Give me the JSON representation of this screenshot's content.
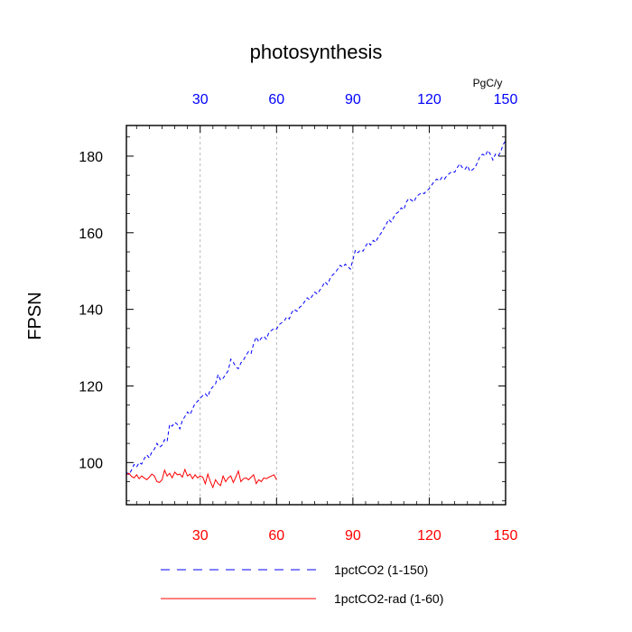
{
  "chart_data": {
    "type": "line",
    "title": "photosynthesis",
    "ylabel": "FPSN",
    "top_axis_unit": "PgC/y",
    "xlim": [
      1,
      150
    ],
    "ylim": [
      89,
      188
    ],
    "x_ticks": [
      30,
      60,
      90,
      120,
      150
    ],
    "y_ticks": [
      100,
      120,
      140,
      160,
      180
    ],
    "bottom_tick_color": "#ff0000",
    "top_tick_color": "#0000ff",
    "grid": "vertical dashed at x ticks",
    "legend_position": "bottom",
    "series": [
      {
        "name": "1pctCO2 (1-150)",
        "color": "#0000ff",
        "dash": "dashed",
        "x": [
          1,
          2,
          3,
          4,
          5,
          6,
          7,
          8,
          9,
          10,
          11,
          12,
          13,
          14,
          15,
          16,
          17,
          18,
          19,
          20,
          21,
          22,
          23,
          24,
          25,
          26,
          27,
          28,
          29,
          30,
          31,
          32,
          33,
          34,
          35,
          36,
          37,
          38,
          39,
          40,
          41,
          42,
          43,
          44,
          45,
          46,
          47,
          48,
          49,
          50,
          51,
          52,
          53,
          54,
          55,
          56,
          57,
          58,
          59,
          60,
          61,
          62,
          63,
          64,
          65,
          66,
          67,
          68,
          69,
          70,
          71,
          72,
          73,
          74,
          75,
          76,
          77,
          78,
          79,
          80,
          81,
          82,
          83,
          84,
          85,
          86,
          87,
          88,
          89,
          90,
          91,
          92,
          93,
          94,
          95,
          96,
          97,
          98,
          99,
          100,
          101,
          102,
          103,
          104,
          105,
          106,
          107,
          108,
          109,
          110,
          111,
          112,
          113,
          114,
          115,
          116,
          117,
          118,
          119,
          120,
          121,
          122,
          123,
          124,
          125,
          126,
          127,
          128,
          129,
          130,
          131,
          132,
          133,
          134,
          135,
          136,
          137,
          138,
          139,
          140,
          141,
          142,
          143,
          144,
          145,
          146,
          147,
          148,
          149,
          150
        ],
        "y": [
          97.5,
          96.8,
          98.0,
          99.5,
          98.8,
          100.0,
          99.6,
          101.0,
          102.0,
          101.2,
          102.8,
          103.5,
          105.0,
          104.0,
          104.5,
          106.0,
          105.5,
          110.0,
          109.5,
          110.5,
          110.0,
          108.8,
          111.0,
          112.0,
          113.2,
          112.5,
          114.0,
          115.5,
          116.0,
          116.8,
          117.5,
          118.0,
          117.2,
          119.0,
          119.8,
          120.5,
          123.0,
          121.5,
          122.0,
          123.0,
          124.0,
          127.0,
          126.2,
          125.0,
          124.5,
          126.0,
          126.8,
          128.0,
          129.0,
          128.5,
          131.0,
          132.8,
          131.5,
          132.5,
          133.0,
          132.2,
          134.0,
          134.5,
          135.0,
          134.8,
          136.0,
          136.5,
          137.0,
          138.0,
          137.5,
          139.2,
          140.0,
          139.5,
          140.5,
          141.0,
          142.0,
          143.0,
          142.5,
          143.5,
          144.5,
          144.0,
          145.0,
          146.0,
          147.2,
          146.5,
          148.0,
          149.0,
          149.5,
          150.5,
          151.5,
          151.0,
          151.8,
          151.2,
          150.5,
          153.0,
          155.5,
          154.8,
          155.5,
          155.2,
          156.5,
          157.5,
          156.8,
          158.0,
          157.5,
          159.0,
          159.8,
          161.0,
          162.0,
          163.5,
          162.8,
          164.0,
          165.0,
          165.5,
          166.5,
          166.0,
          168.0,
          169.0,
          168.5,
          168.0,
          169.5,
          170.0,
          170.5,
          170.2,
          171.0,
          171.5,
          172.5,
          173.5,
          174.0,
          173.5,
          174.5,
          174.0,
          175.0,
          175.5,
          176.0,
          175.8,
          177.0,
          178.0,
          177.0,
          176.5,
          177.5,
          176.0,
          176.5,
          177.0,
          178.5,
          180.0,
          180.5,
          180.0,
          181.5,
          180.5,
          179.0,
          180.5,
          180.0,
          181.0,
          183.0,
          184.0
        ]
      },
      {
        "name": "1pctCO2-rad (1-60)",
        "color": "#ff0000",
        "dash": "solid",
        "x": [
          1,
          2,
          3,
          4,
          5,
          6,
          7,
          8,
          9,
          10,
          11,
          12,
          13,
          14,
          15,
          16,
          17,
          18,
          19,
          20,
          21,
          22,
          23,
          24,
          25,
          26,
          27,
          28,
          29,
          30,
          31,
          32,
          33,
          34,
          35,
          36,
          37,
          38,
          39,
          40,
          41,
          42,
          43,
          44,
          45,
          46,
          47,
          48,
          49,
          50,
          51,
          52,
          53,
          54,
          55,
          56,
          57,
          58,
          59,
          60
        ],
        "y": [
          96.8,
          97.2,
          96.4,
          96.0,
          96.8,
          95.8,
          96.5,
          96.0,
          95.5,
          96.2,
          97.0,
          96.5,
          95.0,
          94.8,
          95.5,
          98.0,
          96.5,
          97.2,
          96.0,
          97.5,
          96.8,
          97.0,
          96.2,
          98.2,
          96.5,
          97.0,
          95.8,
          96.8,
          96.0,
          96.5,
          96.2,
          94.5,
          97.0,
          95.0,
          93.5,
          95.5,
          94.5,
          94.0,
          96.5,
          95.0,
          96.0,
          96.5,
          94.8,
          96.2,
          97.8,
          95.0,
          95.8,
          96.0,
          95.5,
          96.2,
          96.8,
          94.5,
          95.5,
          95.0,
          96.0,
          95.8,
          96.2,
          96.5,
          96.8,
          95.5
        ]
      }
    ]
  }
}
